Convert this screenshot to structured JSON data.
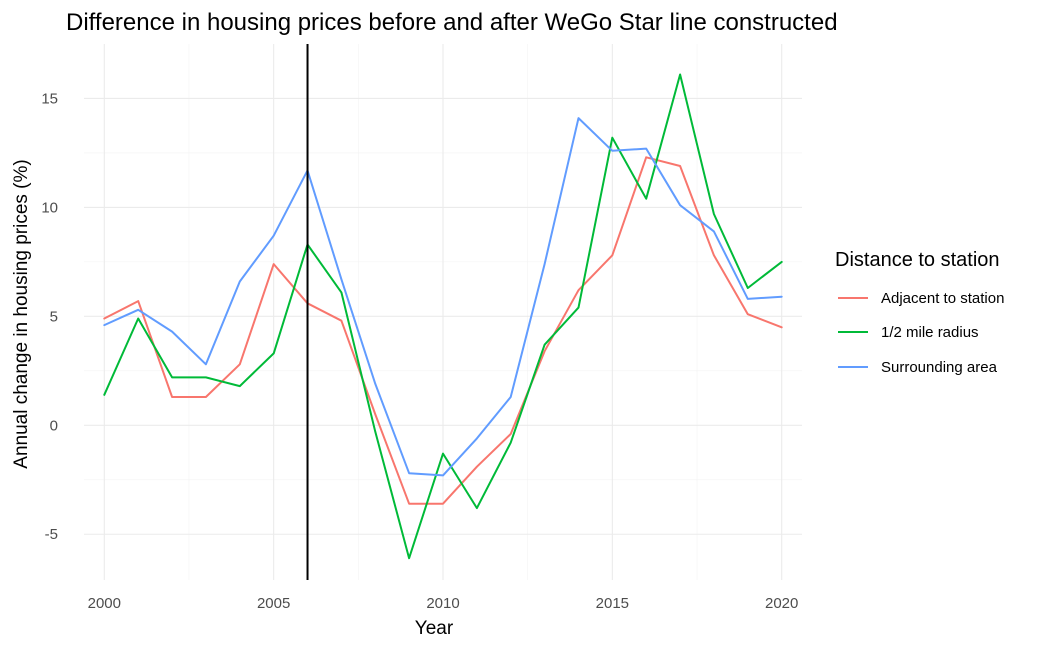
{
  "colors": {
    "adjacent": "#F8766D",
    "half_mile": "#00BA38",
    "surrounding": "#619CFF",
    "event_line": "#000000"
  },
  "chart_data": {
    "type": "line",
    "title": "Difference in housing prices before and after WeGo Star line constructed",
    "xlabel": "Year",
    "ylabel": "Annual change in housing prices (%)",
    "xlim": [
      1999.4,
      2020.6
    ],
    "ylim": [
      -7.1,
      17.5
    ],
    "x_ticks": [
      2000,
      2005,
      2010,
      2015,
      2020
    ],
    "y_ticks": [
      -5,
      0,
      5,
      10,
      15
    ],
    "grid": true,
    "vline": 2006,
    "legend": {
      "title": "Distance to station",
      "position": "right"
    },
    "x": [
      2000,
      2001,
      2002,
      2003,
      2004,
      2005,
      2006,
      2007,
      2008,
      2009,
      2010,
      2011,
      2012,
      2013,
      2014,
      2015,
      2016,
      2017,
      2018,
      2019,
      2020
    ],
    "series": [
      {
        "name": "Adjacent to station",
        "values": [
          4.9,
          5.7,
          1.3,
          1.3,
          2.8,
          7.4,
          5.6,
          4.8,
          0.5,
          -3.6,
          -3.6,
          -1.9,
          -0.4,
          3.4,
          6.2,
          7.8,
          12.3,
          11.9,
          7.8,
          5.1,
          4.5
        ]
      },
      {
        "name": "1/2 mile radius",
        "values": [
          1.4,
          4.9,
          2.2,
          2.2,
          1.8,
          3.3,
          8.3,
          6.1,
          -0.3,
          -6.1,
          -1.3,
          -3.8,
          -0.8,
          3.7,
          5.4,
          13.2,
          10.4,
          16.1,
          9.7,
          6.3,
          7.5
        ]
      },
      {
        "name": "Surrounding area",
        "values": [
          4.6,
          5.3,
          4.3,
          2.8,
          6.6,
          8.7,
          11.7,
          6.7,
          1.9,
          -2.2,
          -2.3,
          -0.6,
          1.3,
          7.4,
          14.1,
          12.6,
          12.7,
          10.1,
          8.9,
          5.8,
          5.9
        ]
      }
    ]
  }
}
